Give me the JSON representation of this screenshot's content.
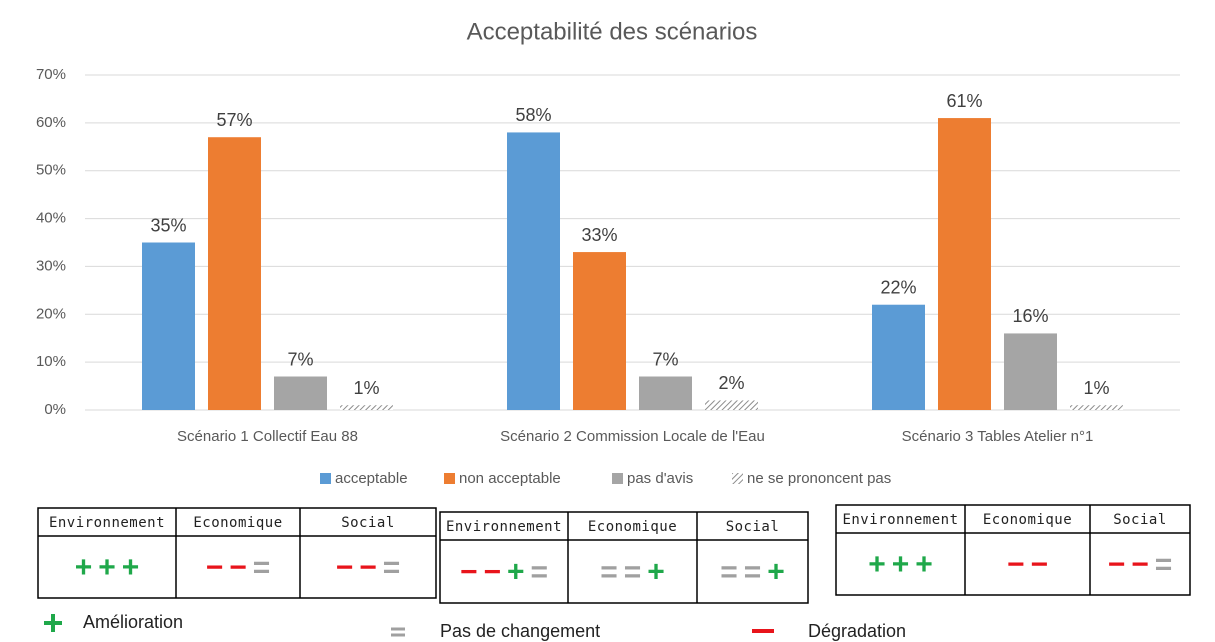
{
  "chart_data": {
    "type": "bar",
    "title": "Acceptabilité des scénarios",
    "categories": [
      "Scénario 1 Collectif Eau 88",
      "Scénario 2 Commission Locale de l'Eau",
      "Scénario 3 Tables Atelier n°1"
    ],
    "series": [
      {
        "name": "acceptable",
        "color": "#5b9bd5",
        "values": [
          35,
          58,
          22
        ],
        "value_labels": [
          "35%",
          "58%",
          "22%"
        ]
      },
      {
        "name": "non acceptable",
        "color": "#ed7d31",
        "values": [
          57,
          33,
          61
        ],
        "value_labels": [
          "57%",
          "33%",
          "61%"
        ]
      },
      {
        "name": "pas d'avis",
        "color": "#a5a5a5",
        "values": [
          7,
          7,
          16
        ],
        "value_labels": [
          "7%",
          "7%",
          "16%"
        ]
      },
      {
        "name": "ne se prononcent pas",
        "color": "#a5a5a5",
        "hatch": true,
        "values": [
          1,
          2,
          1
        ],
        "value_labels": [
          "1%",
          "2%",
          "1%"
        ]
      }
    ],
    "ylim": [
      0,
      70
    ],
    "yticks": [
      {
        "value": 0,
        "label": "0%"
      },
      {
        "value": 10,
        "label": "10%"
      },
      {
        "value": 20,
        "label": "20%"
      },
      {
        "value": 30,
        "label": "30%"
      },
      {
        "value": 40,
        "label": "40%"
      },
      {
        "value": 50,
        "label": "50%"
      },
      {
        "value": 60,
        "label": "60%"
      },
      {
        "value": 70,
        "label": "70%"
      }
    ],
    "grid": true,
    "legend": "bottom"
  },
  "tables": [
    {
      "headers": [
        "Environnement",
        "Economique",
        "Social"
      ],
      "cells": [
        "+++",
        "−−=",
        "−−="
      ]
    },
    {
      "headers": [
        "Environnement",
        "Economique",
        "Social"
      ],
      "cells": [
        "−−+=",
        "==+",
        "==+"
      ]
    },
    {
      "headers": [
        "Environnement",
        "Economique",
        "Social"
      ],
      "cells": [
        "+++",
        "−−",
        "−−="
      ]
    }
  ],
  "key": [
    "Amélioration",
    "Pas de changement",
    "Dégradation"
  ]
}
